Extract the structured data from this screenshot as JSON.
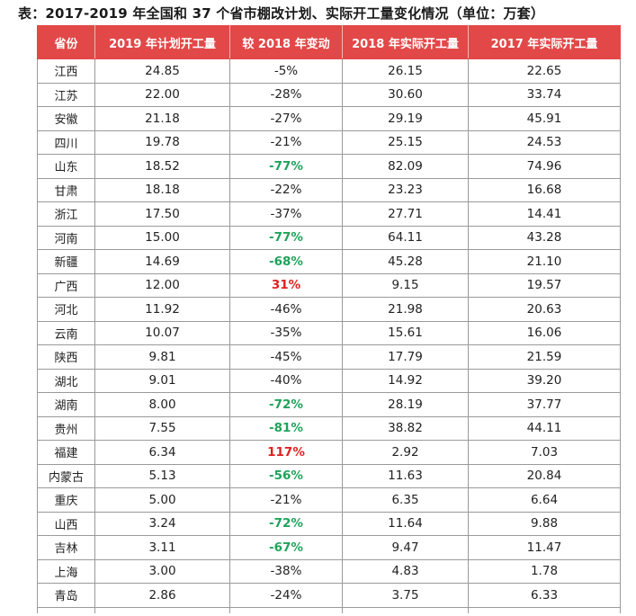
{
  "title": "表：2017-2019 年全国和 37 个省市棚改计划、实际开工量变化情况（单位：万套）",
  "headers": [
    "省份",
    "2019 年计划开工量",
    "较 2018 年变动",
    "2018 年实际开工量",
    "2017 年实际开工量"
  ],
  "colors": {
    "header_bg": "#e24848",
    "decrease_strong": "#1fa35a",
    "increase": "#e02020"
  },
  "rows": [
    {
      "province": "江西",
      "plan2019": "24.85",
      "change": "-5%",
      "actual2018": "26.15",
      "actual2017": "22.65",
      "style": ""
    },
    {
      "province": "江苏",
      "plan2019": "22.00",
      "change": "-28%",
      "actual2018": "30.60",
      "actual2017": "33.74",
      "style": ""
    },
    {
      "province": "安徽",
      "plan2019": "21.18",
      "change": "-27%",
      "actual2018": "29.19",
      "actual2017": "45.91",
      "style": ""
    },
    {
      "province": "四川",
      "plan2019": "19.78",
      "change": "-21%",
      "actual2018": "25.15",
      "actual2017": "24.53",
      "style": ""
    },
    {
      "province": "山东",
      "plan2019": "18.52",
      "change": "-77%",
      "actual2018": "82.09",
      "actual2017": "74.96",
      "style": "green"
    },
    {
      "province": "甘肃",
      "plan2019": "18.18",
      "change": "-22%",
      "actual2018": "23.23",
      "actual2017": "16.68",
      "style": ""
    },
    {
      "province": "浙江",
      "plan2019": "17.50",
      "change": "-37%",
      "actual2018": "27.71",
      "actual2017": "14.41",
      "style": ""
    },
    {
      "province": "河南",
      "plan2019": "15.00",
      "change": "-77%",
      "actual2018": "64.11",
      "actual2017": "43.28",
      "style": "green"
    },
    {
      "province": "新疆",
      "plan2019": "14.69",
      "change": "-68%",
      "actual2018": "45.28",
      "actual2017": "21.10",
      "style": "green"
    },
    {
      "province": "广西",
      "plan2019": "12.00",
      "change": "31%",
      "actual2018": "9.15",
      "actual2017": "19.57",
      "style": "red"
    },
    {
      "province": "河北",
      "plan2019": "11.92",
      "change": "-46%",
      "actual2018": "21.98",
      "actual2017": "20.63",
      "style": ""
    },
    {
      "province": "云南",
      "plan2019": "10.07",
      "change": "-35%",
      "actual2018": "15.61",
      "actual2017": "16.06",
      "style": ""
    },
    {
      "province": "陕西",
      "plan2019": "9.81",
      "change": "-45%",
      "actual2018": "17.79",
      "actual2017": "21.59",
      "style": ""
    },
    {
      "province": "湖北",
      "plan2019": "9.01",
      "change": "-40%",
      "actual2018": "14.92",
      "actual2017": "39.20",
      "style": ""
    },
    {
      "province": "湖南",
      "plan2019": "8.00",
      "change": "-72%",
      "actual2018": "28.19",
      "actual2017": "37.77",
      "style": "green"
    },
    {
      "province": "贵州",
      "plan2019": "7.55",
      "change": "-81%",
      "actual2018": "38.82",
      "actual2017": "44.11",
      "style": "green"
    },
    {
      "province": "福建",
      "plan2019": "6.34",
      "change": "117%",
      "actual2018": "2.92",
      "actual2017": "7.03",
      "style": "red"
    },
    {
      "province": "内蒙古",
      "plan2019": "5.13",
      "change": "-56%",
      "actual2018": "11.63",
      "actual2017": "20.84",
      "style": "green"
    },
    {
      "province": "重庆",
      "plan2019": "5.00",
      "change": "-21%",
      "actual2018": "6.35",
      "actual2017": "6.64",
      "style": ""
    },
    {
      "province": "山西",
      "plan2019": "3.24",
      "change": "-72%",
      "actual2018": "11.64",
      "actual2017": "9.88",
      "style": "green"
    },
    {
      "province": "吉林",
      "plan2019": "3.11",
      "change": "-67%",
      "actual2018": "9.47",
      "actual2017": "11.47",
      "style": "green"
    },
    {
      "province": "上海",
      "plan2019": "3.00",
      "change": "-38%",
      "actual2018": "4.83",
      "actual2017": "1.78",
      "style": ""
    },
    {
      "province": "青岛",
      "plan2019": "2.86",
      "change": "-24%",
      "actual2018": "3.75",
      "actual2017": "6.33",
      "style": ""
    }
  ]
}
